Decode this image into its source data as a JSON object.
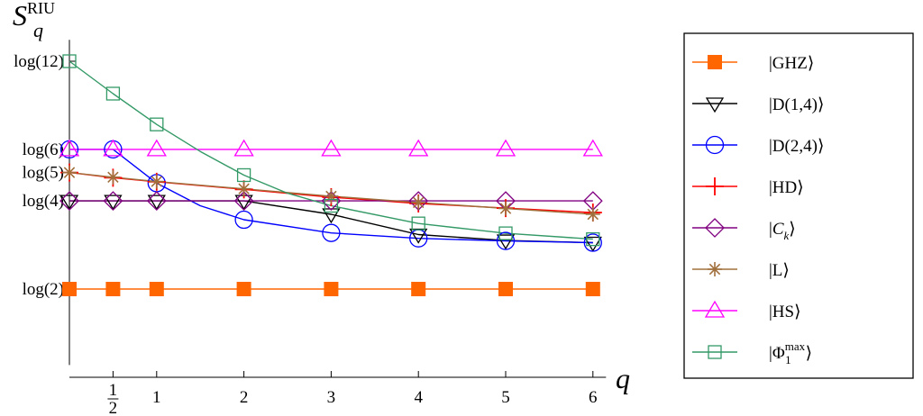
{
  "chart_data": {
    "type": "line",
    "ylabel": {
      "main": "S",
      "sub": "q",
      "sup": "RIU"
    },
    "xlabel": "q",
    "x_ticks": [
      {
        "value": 0.5,
        "label": "1/2",
        "num": "1",
        "den": "2"
      },
      {
        "value": 1,
        "label": "1"
      },
      {
        "value": 2,
        "label": "2"
      },
      {
        "value": 3,
        "label": "3"
      },
      {
        "value": 4,
        "label": "4"
      },
      {
        "value": 5,
        "label": "5"
      },
      {
        "value": 6,
        "label": "6"
      }
    ],
    "y_ticks": [
      {
        "value": 2,
        "label": "log(2)"
      },
      {
        "value": 4,
        "label": "log(4)"
      },
      {
        "value": 5,
        "label": "log(5)"
      },
      {
        "value": 6,
        "label": "log(6)"
      },
      {
        "value": 12,
        "label": "log(12)"
      }
    ],
    "y_scale": "log",
    "xlim": [
      0,
      6.15
    ],
    "ylim": [
      1.1,
      14.2
    ],
    "series": [
      {
        "name": "|GHZ⟩",
        "legend": {
          "pre": "|GHZ",
          "post": "⟩"
        },
        "color": "#ff6600",
        "marker": "filled-square",
        "points": [
          [
            0,
            2
          ],
          [
            0.5,
            2
          ],
          [
            1,
            2
          ],
          [
            2,
            2
          ],
          [
            3,
            2
          ],
          [
            4,
            2
          ],
          [
            5,
            2
          ],
          [
            6,
            2
          ]
        ],
        "curve": [
          [
            0,
            2
          ],
          [
            6,
            2
          ]
        ]
      },
      {
        "name": "|D(1,4)⟩",
        "legend": {
          "pre": "|D(1,4)",
          "post": "⟩"
        },
        "color": "#000000",
        "marker": "triangle-down",
        "points": [
          [
            0,
            4
          ],
          [
            0.5,
            4
          ],
          [
            1,
            4
          ],
          [
            2,
            4
          ],
          [
            3,
            3.6
          ],
          [
            4,
            3.07
          ],
          [
            5,
            2.93
          ],
          [
            6,
            2.88
          ]
        ],
        "curve": [
          [
            0,
            4
          ],
          [
            2,
            4
          ],
          [
            3,
            3.6
          ],
          [
            4,
            3.07
          ],
          [
            5,
            2.93
          ],
          [
            6,
            2.88
          ]
        ]
      },
      {
        "name": "|D(2,4)⟩",
        "legend": {
          "pre": "|D(2,4)",
          "post": "⟩"
        },
        "color": "#0000ff",
        "marker": "circle",
        "points": [
          [
            0,
            6
          ],
          [
            0.5,
            6
          ],
          [
            1,
            4.6
          ],
          [
            2,
            3.45
          ],
          [
            3,
            3.11
          ],
          [
            4,
            2.98
          ],
          [
            5,
            2.92
          ],
          [
            6,
            2.88
          ]
        ],
        "curve": [
          [
            0,
            6
          ],
          [
            0.5,
            6
          ],
          [
            1,
            4.6
          ],
          [
            1.5,
            3.85
          ],
          [
            2,
            3.45
          ],
          [
            3,
            3.11
          ],
          [
            4,
            2.98
          ],
          [
            5,
            2.92
          ],
          [
            6,
            2.88
          ]
        ]
      },
      {
        "name": "|HD⟩",
        "legend": {
          "pre": "|HD",
          "post": "⟩"
        },
        "color": "#ff0000",
        "marker": "plus",
        "points": [
          [
            0,
            5
          ],
          [
            0.5,
            4.8
          ],
          [
            1,
            4.65
          ],
          [
            2,
            4.38
          ],
          [
            3,
            4.12
          ],
          [
            4,
            3.92
          ],
          [
            5,
            3.78
          ],
          [
            6,
            3.65
          ]
        ],
        "curve": [
          [
            0,
            5
          ],
          [
            0.5,
            4.8
          ],
          [
            1,
            4.65
          ],
          [
            2,
            4.38
          ],
          [
            3,
            4.12
          ],
          [
            4,
            3.92
          ],
          [
            5,
            3.78
          ],
          [
            6,
            3.65
          ]
        ]
      },
      {
        "name": "|Cₖ⟩",
        "legend": {
          "pre": "|",
          "italic": "C",
          "sub": "k",
          "post": "⟩"
        },
        "color": "#800080",
        "marker": "diamond",
        "points": [
          [
            0,
            4
          ],
          [
            0.5,
            4
          ],
          [
            1,
            4
          ],
          [
            2,
            4
          ],
          [
            3,
            4
          ],
          [
            4,
            4
          ],
          [
            5,
            4
          ],
          [
            6,
            4
          ]
        ],
        "curve": [
          [
            0,
            4
          ],
          [
            6,
            4
          ]
        ]
      },
      {
        "name": "|L⟩",
        "legend": {
          "pre": "|L",
          "post": "⟩"
        },
        "color": "#a0703c",
        "marker": "star",
        "points": [
          [
            0,
            5
          ],
          [
            0.5,
            4.82
          ],
          [
            1,
            4.66
          ],
          [
            2,
            4.4
          ],
          [
            3,
            4.15
          ],
          [
            4,
            3.95
          ],
          [
            5,
            3.77
          ],
          [
            6,
            3.6
          ]
        ],
        "curve": [
          [
            0,
            5
          ],
          [
            0.5,
            4.82
          ],
          [
            1,
            4.66
          ],
          [
            2,
            4.4
          ],
          [
            3,
            4.15
          ],
          [
            4,
            3.95
          ],
          [
            5,
            3.77
          ],
          [
            6,
            3.6
          ]
        ]
      },
      {
        "name": "|HS⟩",
        "legend": {
          "pre": "|HS",
          "post": "⟩"
        },
        "color": "#ff00ff",
        "marker": "triangle-up",
        "points": [
          [
            0,
            6
          ],
          [
            0.5,
            6
          ],
          [
            1,
            6
          ],
          [
            2,
            6
          ],
          [
            3,
            6
          ],
          [
            4,
            6
          ],
          [
            5,
            6
          ],
          [
            6,
            6
          ]
        ],
        "curve": [
          [
            0,
            6
          ],
          [
            6,
            6
          ]
        ]
      },
      {
        "name": "|Φ₁ᵐᵃˣ⟩",
        "legend": {
          "pre": "|",
          "phi": "Φ",
          "sub": "1",
          "sup": "max",
          "post": "⟩"
        },
        "color": "#339966",
        "marker": "open-square",
        "points": [
          [
            0,
            12
          ],
          [
            0.5,
            9.3
          ],
          [
            1,
            7.3
          ],
          [
            2,
            4.9
          ],
          [
            3,
            3.85
          ],
          [
            4,
            3.35
          ],
          [
            5,
            3.1
          ],
          [
            6,
            2.96
          ]
        ],
        "curve": [
          [
            0,
            12
          ],
          [
            0.5,
            9.3
          ],
          [
            1,
            7.3
          ],
          [
            1.5,
            5.9
          ],
          [
            2,
            4.9
          ],
          [
            2.5,
            4.25
          ],
          [
            3,
            3.85
          ],
          [
            4,
            3.35
          ],
          [
            5,
            3.1
          ],
          [
            6,
            2.96
          ]
        ]
      }
    ]
  }
}
